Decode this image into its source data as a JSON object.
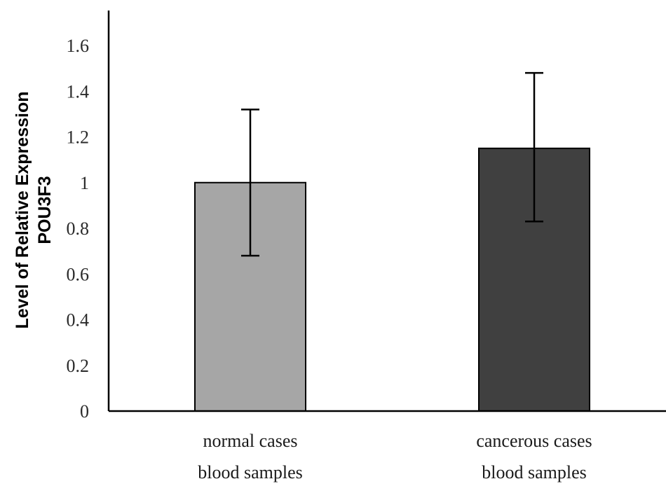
{
  "chart_data": {
    "type": "bar",
    "title": "",
    "ylabel_lines": [
      "Level of Relative Expression",
      "POU3F3"
    ],
    "xlabel": "",
    "ylim": [
      0,
      1.6
    ],
    "yticks": [
      "0",
      "0.2",
      "0.4",
      "0.6",
      "0.8",
      "1",
      "1.2",
      "1.4",
      "1.6"
    ],
    "categories": [
      {
        "lines": [
          "normal cases",
          "blood samples"
        ]
      },
      {
        "lines": [
          "cancerous cases",
          "blood samples"
        ]
      }
    ],
    "values": [
      1.0,
      1.15
    ],
    "error_low": [
      0.68,
      0.83
    ],
    "error_high": [
      1.32,
      1.48
    ],
    "colors": [
      "#a6a6a6",
      "#404040"
    ],
    "grid": false
  }
}
